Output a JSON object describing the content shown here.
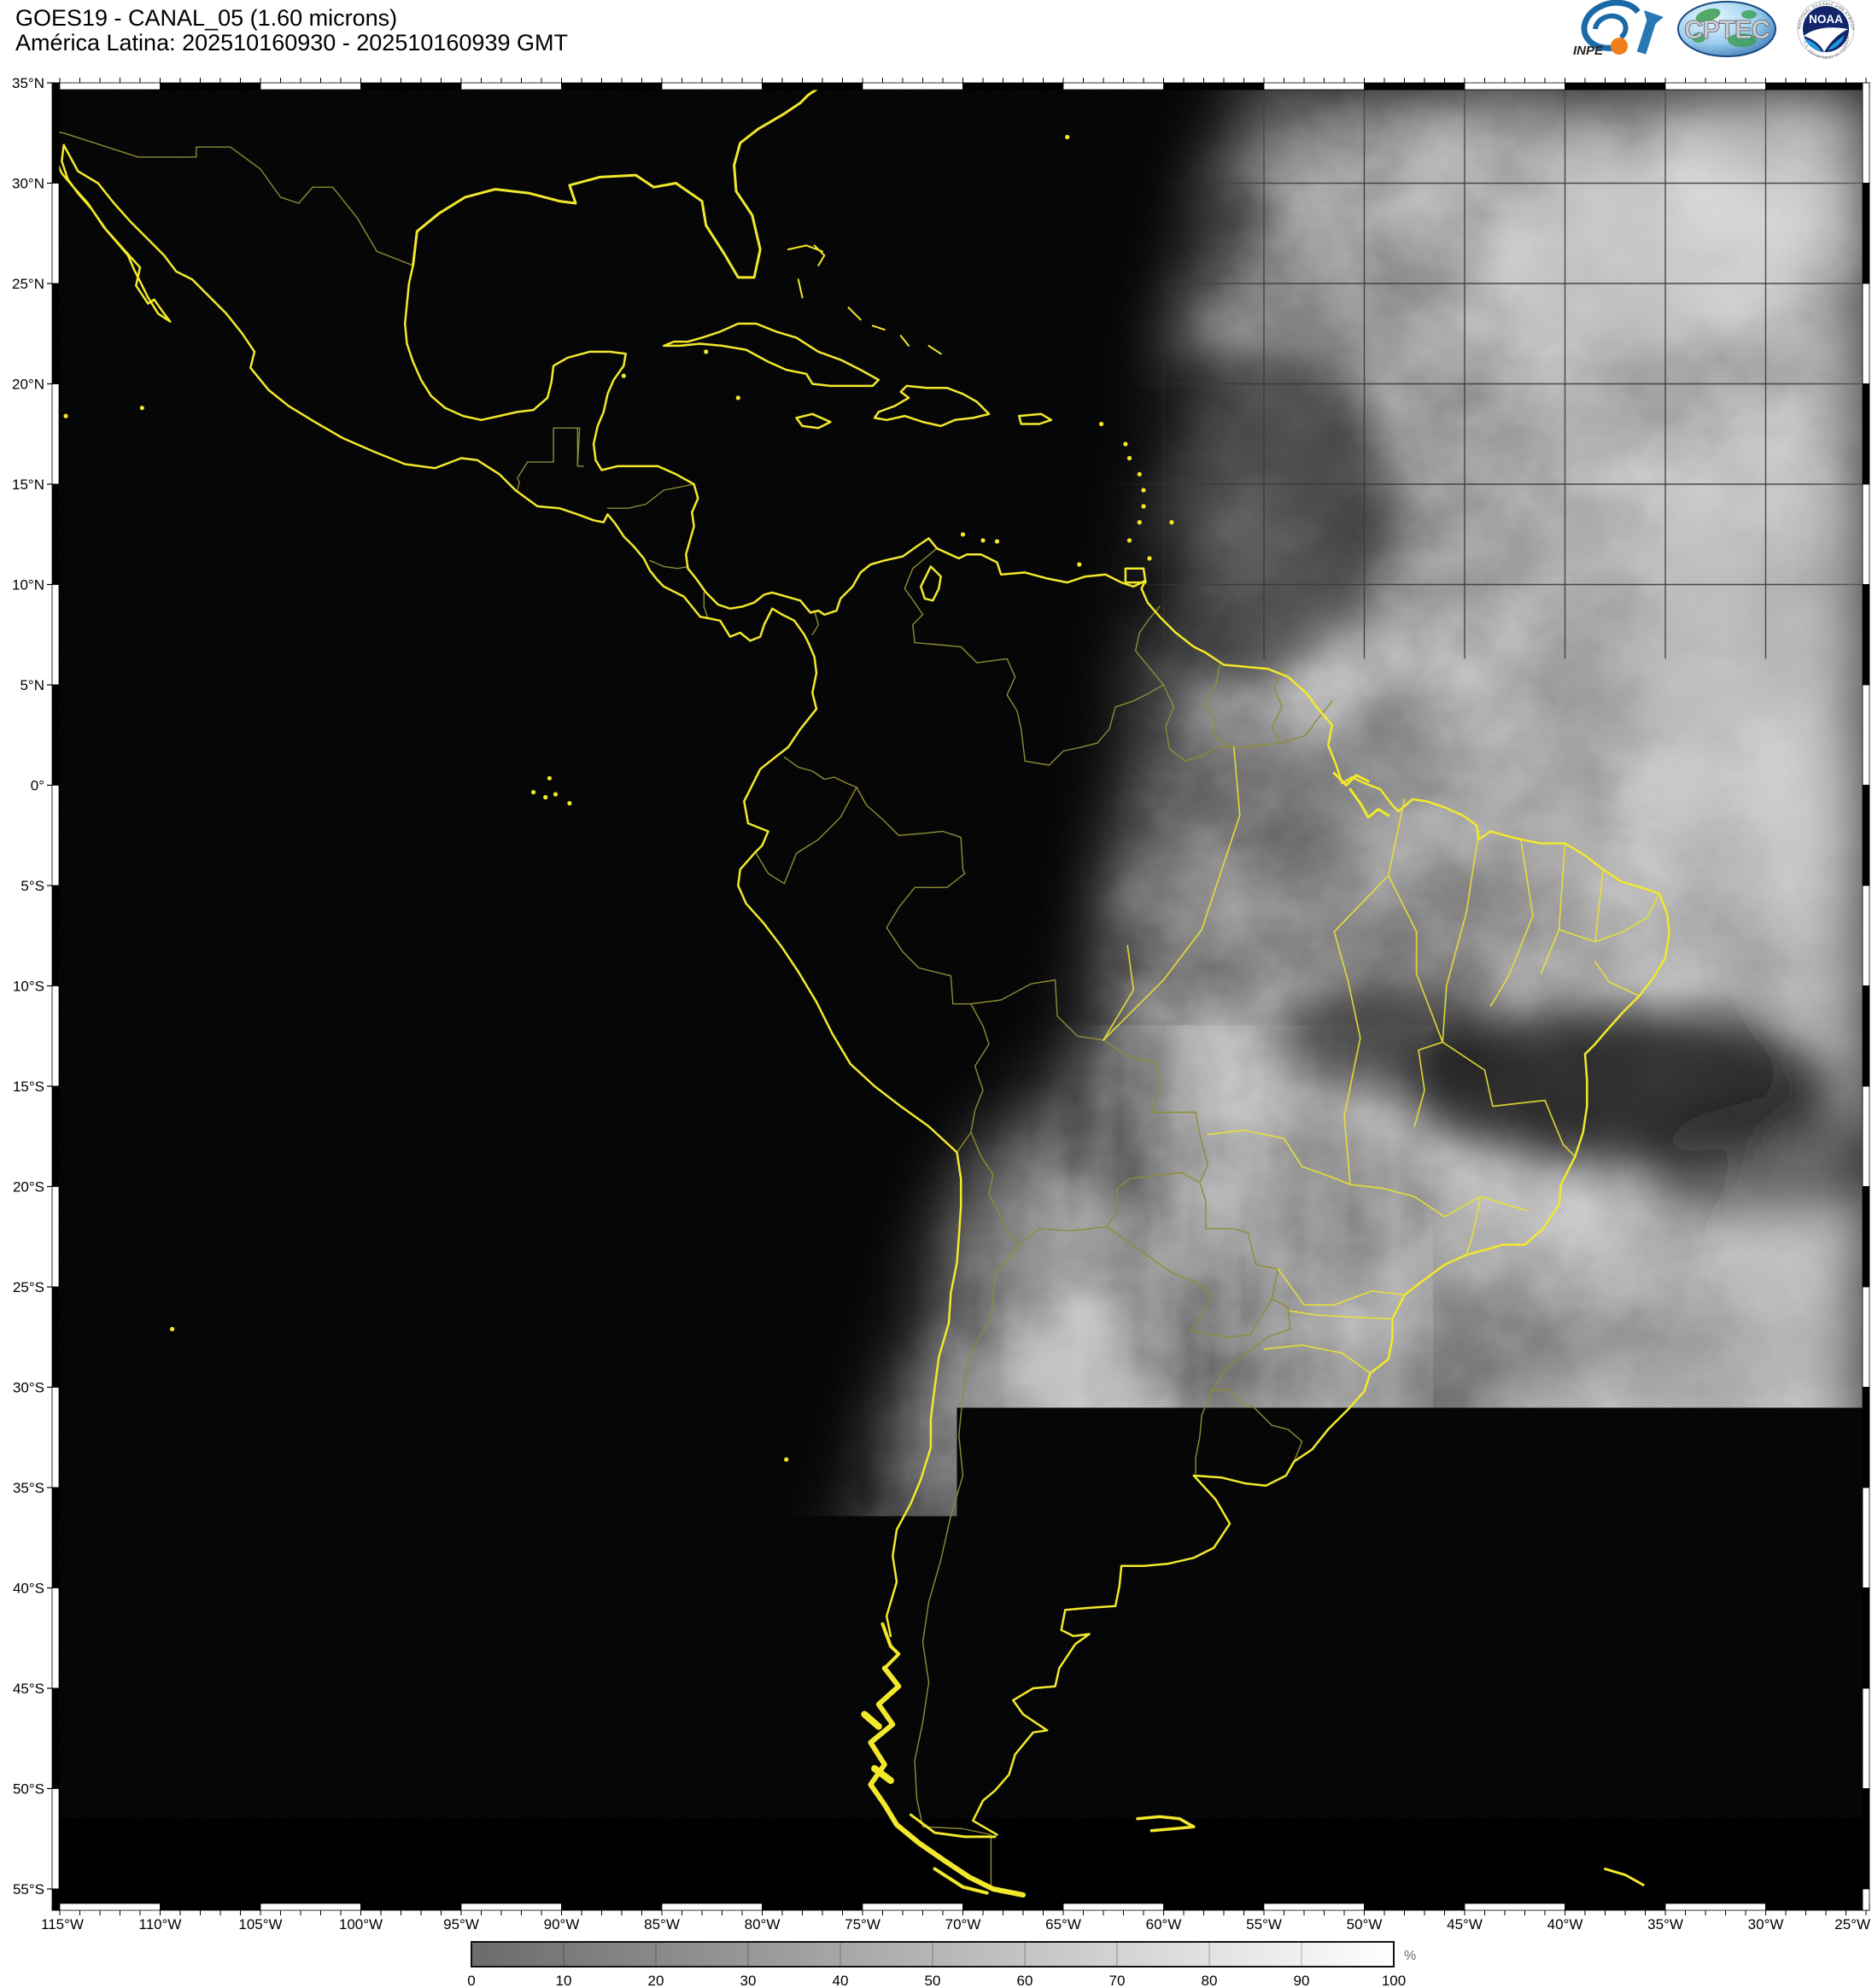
{
  "header": {
    "line1": "GOES19 - CANAL_05 (1.60 microns)",
    "line2": "América Latina: 202510160930 - 202510160939 GMT"
  },
  "logos": {
    "inpe_label": "INPE",
    "cptec_label": "CPTEC",
    "noaa_label": "NOAA",
    "noaa_ring_top": "NATIONAL OCEANIC AND ATMOSPHERIC ADMINISTRATION",
    "noaa_ring_bottom": "U.S. DEPARTMENT OF COMMERCE"
  },
  "map": {
    "lat_labels": [
      "35°N",
      "30°N",
      "25°N",
      "20°N",
      "15°N",
      "10°N",
      "5°N",
      "0°",
      "5°S",
      "10°S",
      "15°S",
      "20°S",
      "25°S",
      "30°S",
      "35°S",
      "40°S",
      "45°S",
      "50°S",
      "55°S"
    ],
    "lon_labels": [
      "115°W",
      "110°W",
      "105°W",
      "100°W",
      "95°W",
      "90°W",
      "85°W",
      "80°W",
      "75°W",
      "70°W",
      "65°W",
      "60°W",
      "55°W",
      "50°W",
      "45°W",
      "40°W",
      "35°W",
      "30°W",
      "25°W"
    ]
  },
  "colorbar": {
    "ticks": [
      "0",
      "10",
      "20",
      "30",
      "40",
      "50",
      "60",
      "70",
      "80",
      "90",
      "100"
    ],
    "unit": "%"
  },
  "colors": {
    "coastline": "#f2e92c",
    "border_dim": "#8f8c38",
    "state_bright": "#e9e134",
    "night": "#000000",
    "page": "#ffffff"
  }
}
